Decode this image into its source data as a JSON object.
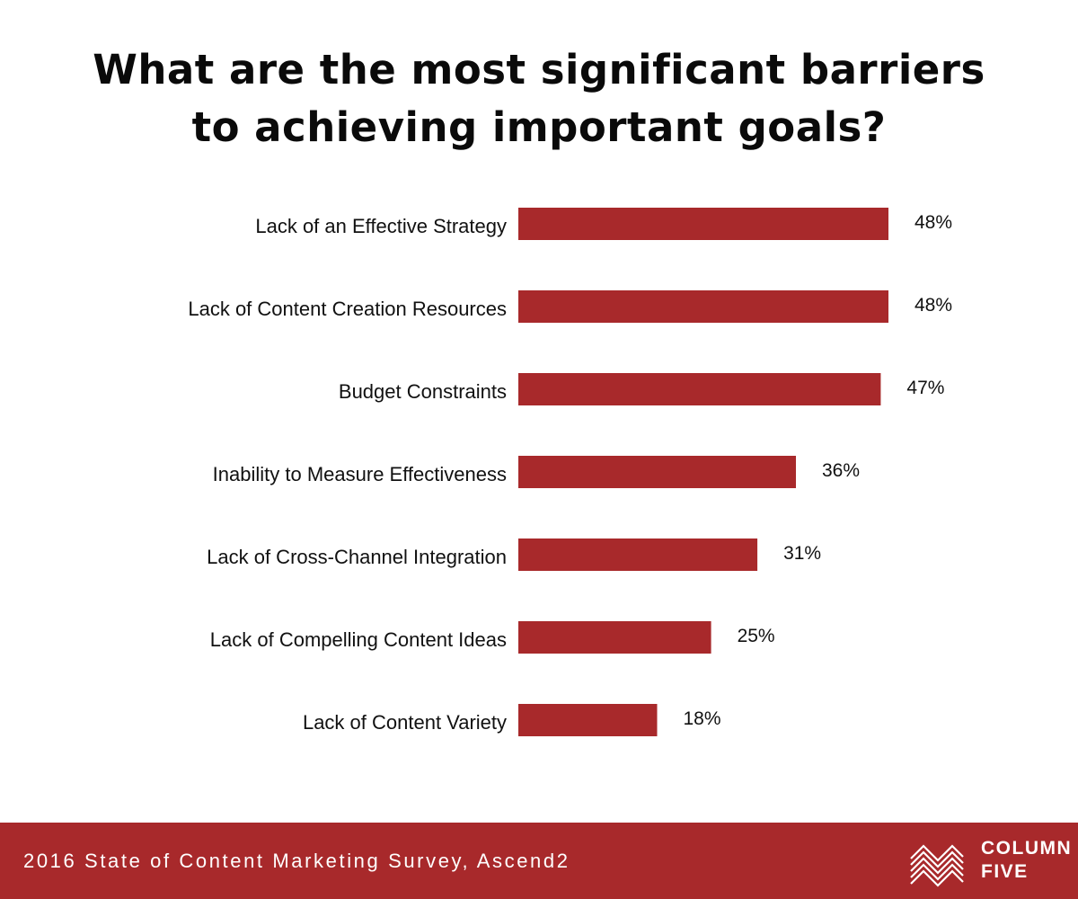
{
  "title_lines": [
    "What are the most significant barriers",
    "to achieving important goals?"
  ],
  "footer": {
    "source": "2016 State of Content Marketing Survey, Ascend2",
    "logo_lines": [
      "COLUMN",
      "FIVE"
    ]
  },
  "colors": {
    "bar": "#a8292b",
    "footer_bg": "#a8292b",
    "text": "#111111"
  },
  "chart_data": {
    "type": "bar",
    "orientation": "horizontal",
    "title": "What are the most significant barriers to achieving important goals?",
    "categories": [
      "Lack of an Effective Strategy",
      "Lack of Content Creation Resources",
      "Budget Constraints",
      "Inability to Measure Effectiveness",
      "Lack of Cross-Channel Integration",
      "Lack of Compelling Content Ideas",
      "Lack of Content Variety"
    ],
    "values": [
      48,
      48,
      47,
      36,
      31,
      25,
      18
    ],
    "value_labels": [
      "48%",
      "48%",
      "47%",
      "36%",
      "31%",
      "25%",
      "18%"
    ],
    "xlabel": "",
    "ylabel": "",
    "xlim": [
      0,
      48
    ],
    "grid": false,
    "legend": "none"
  }
}
